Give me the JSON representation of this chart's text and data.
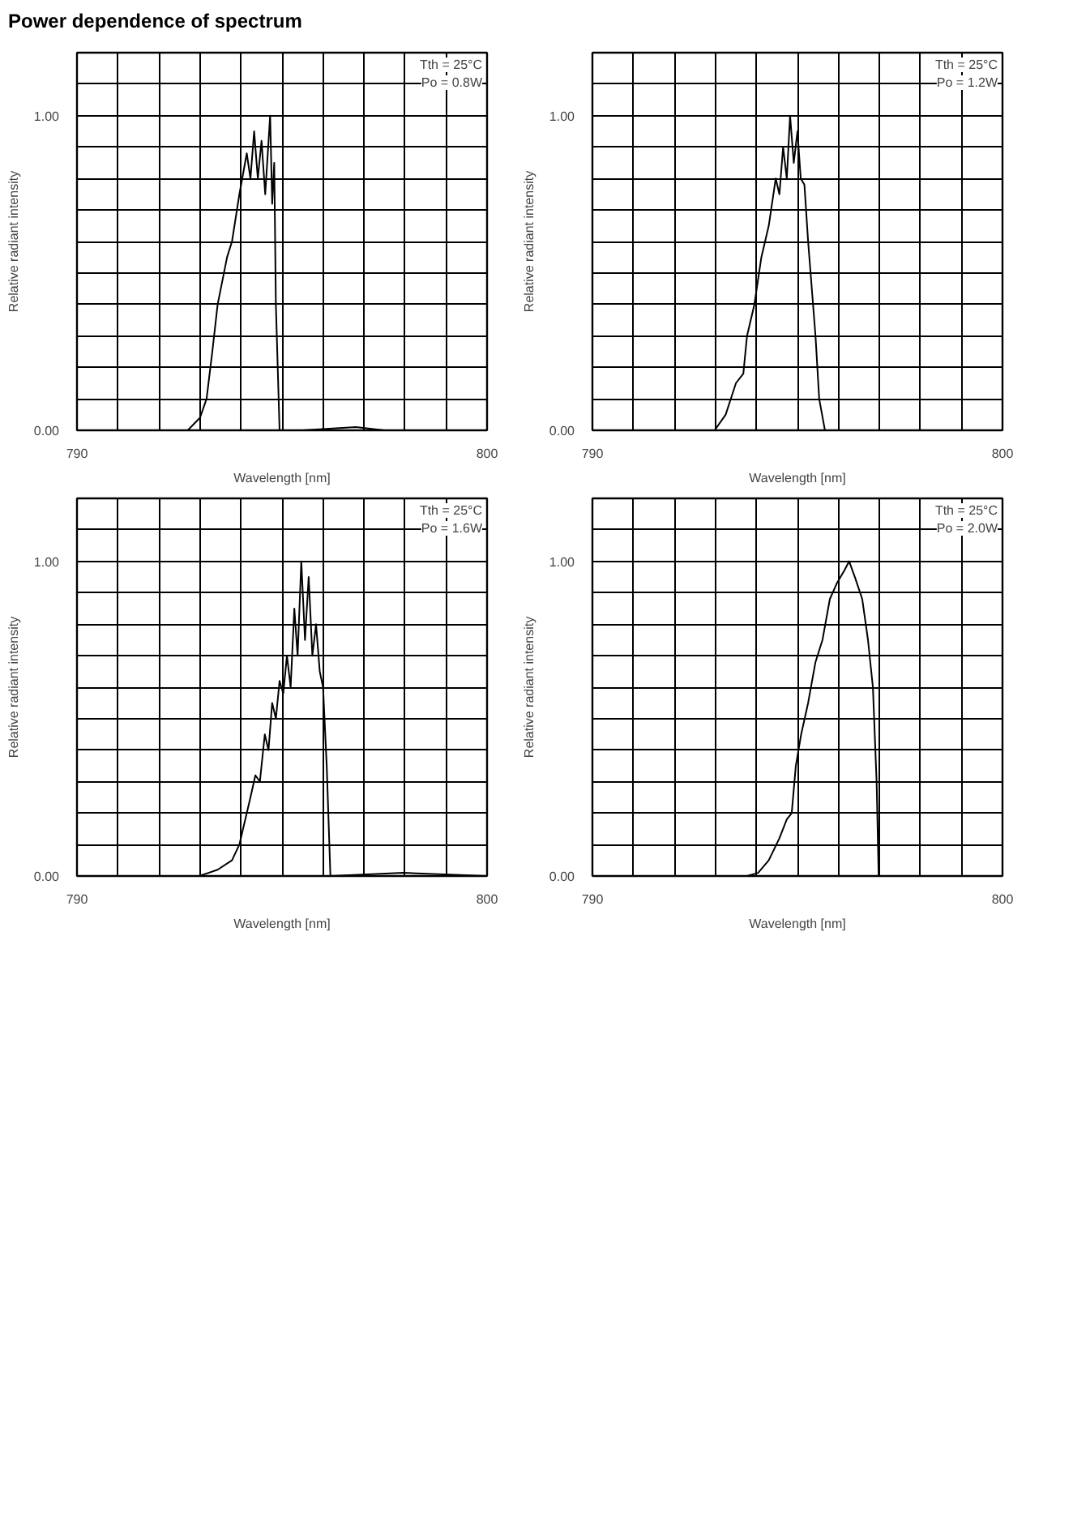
{
  "chart_data": [
    {
      "type": "line",
      "title": "Power dependence of spectrum",
      "xlabel": "Wavelength [nm]",
      "ylabel": "Relative radiant intensity",
      "annotations": [
        "Tth = 25°C",
        "Po = 0.8W"
      ],
      "grid": true,
      "color": "#000000",
      "xlim": [
        790,
        800
      ],
      "ylim": [
        0,
        1.2
      ],
      "xticks": [
        790,
        {
          "value": 791,
          "label": null
        },
        {
          "value": 792,
          "label": null
        },
        {
          "value": 793,
          "label": null
        },
        {
          "value": 794,
          "label": null
        },
        {
          "value": 795,
          "label": null
        },
        {
          "value": 796,
          "label": null
        },
        {
          "value": 797,
          "label": null
        },
        {
          "value": 798,
          "label": null
        },
        {
          "value": 799,
          "label": null
        },
        800
      ],
      "yticks": [
        {
          "value": 0,
          "label": "0.00"
        },
        {
          "value": 0.1,
          "label": null
        },
        {
          "value": 0.2,
          "label": null
        },
        {
          "value": 0.3,
          "label": null
        },
        {
          "value": 0.4,
          "label": null
        },
        {
          "value": 0.5,
          "label": null
        },
        {
          "value": 0.6,
          "label": null
        },
        {
          "value": 0.7,
          "label": null
        },
        {
          "value": 0.8,
          "label": null
        },
        {
          "value": 0.9,
          "label": null
        },
        {
          "value": 1.0,
          "label": "1.00"
        },
        {
          "value": 1.1,
          "label": null
        }
      ],
      "x": [
        790.0,
        791.5,
        792.7,
        793.0,
        793.16,
        793.3,
        793.43,
        793.66,
        793.78,
        793.96,
        794.14,
        794.23,
        794.32,
        794.41,
        794.5,
        794.59,
        794.71,
        794.76,
        794.81,
        794.85,
        794.94,
        795.5,
        796.8,
        797.5,
        800.0
      ],
      "values": [
        0.0,
        0.0,
        0.0,
        0.04,
        0.1,
        0.25,
        0.4,
        0.55,
        0.6,
        0.75,
        0.88,
        0.8,
        0.95,
        0.8,
        0.92,
        0.75,
        1.0,
        0.72,
        0.85,
        0.4,
        0.0,
        0.0,
        0.01,
        0.0,
        0.0
      ]
    },
    {
      "type": "line",
      "xlabel": "Wavelength [nm]",
      "ylabel": "Relative radiant intensity",
      "annotations": [
        "Tth = 25°C",
        "Po = 1.2W"
      ],
      "grid": true,
      "color": "#000000",
      "xlim": [
        790,
        800
      ],
      "ylim": [
        0,
        1.2
      ],
      "xticks": [
        790,
        {
          "value": 791,
          "label": null
        },
        {
          "value": 792,
          "label": null
        },
        {
          "value": 793,
          "label": null
        },
        {
          "value": 794,
          "label": null
        },
        {
          "value": 795,
          "label": null
        },
        {
          "value": 796,
          "label": null
        },
        {
          "value": 797,
          "label": null
        },
        {
          "value": 798,
          "label": null
        },
        {
          "value": 799,
          "label": null
        },
        800
      ],
      "yticks": [
        {
          "value": 0,
          "label": "0.00"
        },
        {
          "value": 0.1,
          "label": null
        },
        {
          "value": 0.2,
          "label": null
        },
        {
          "value": 0.3,
          "label": null
        },
        {
          "value": 0.4,
          "label": null
        },
        {
          "value": 0.5,
          "label": null
        },
        {
          "value": 0.6,
          "label": null
        },
        {
          "value": 0.7,
          "label": null
        },
        {
          "value": 0.8,
          "label": null
        },
        {
          "value": 0.9,
          "label": null
        },
        {
          "value": 1.0,
          "label": "1.00"
        },
        {
          "value": 1.1,
          "label": null
        }
      ],
      "x": [
        790.0,
        792.8,
        792.98,
        793.25,
        793.5,
        793.68,
        793.77,
        793.95,
        794.12,
        794.3,
        794.47,
        794.56,
        794.65,
        794.74,
        794.82,
        794.91,
        795.0,
        795.08,
        795.17,
        795.26,
        795.44,
        795.53,
        795.67,
        797.5,
        800.0
      ],
      "values": [
        0.0,
        0.0,
        0.0,
        0.05,
        0.15,
        0.18,
        0.3,
        0.4,
        0.55,
        0.65,
        0.8,
        0.75,
        0.9,
        0.8,
        1.0,
        0.85,
        0.95,
        0.8,
        0.78,
        0.6,
        0.3,
        0.1,
        0.0,
        0.0,
        0.0
      ]
    },
    {
      "type": "line",
      "xlabel": "Wavelength [nm]",
      "ylabel": "Relative radiant intensity",
      "annotations": [
        "Tth = 25°C",
        "Po = 1.6W"
      ],
      "grid": true,
      "color": "#000000",
      "xlim": [
        790,
        800
      ],
      "ylim": [
        0,
        1.2
      ],
      "xticks": [
        790,
        {
          "value": 791,
          "label": null
        },
        {
          "value": 792,
          "label": null
        },
        {
          "value": 793,
          "label": null
        },
        {
          "value": 794,
          "label": null
        },
        {
          "value": 795,
          "label": null
        },
        {
          "value": 796,
          "label": null
        },
        {
          "value": 797,
          "label": null
        },
        {
          "value": 798,
          "label": null
        },
        {
          "value": 799,
          "label": null
        },
        800
      ],
      "yticks": [
        {
          "value": 0,
          "label": "0.00"
        },
        {
          "value": 0.1,
          "label": null
        },
        {
          "value": 0.2,
          "label": null
        },
        {
          "value": 0.3,
          "label": null
        },
        {
          "value": 0.4,
          "label": null
        },
        {
          "value": 0.5,
          "label": null
        },
        {
          "value": 0.6,
          "label": null
        },
        {
          "value": 0.7,
          "label": null
        },
        {
          "value": 0.8,
          "label": null
        },
        {
          "value": 0.9,
          "label": null
        },
        {
          "value": 1.0,
          "label": "1.00"
        },
        {
          "value": 1.1,
          "label": null
        }
      ],
      "x": [
        790.0,
        792.98,
        793.43,
        793.78,
        793.96,
        794.23,
        794.35,
        794.46,
        794.58,
        794.67,
        794.76,
        794.85,
        794.94,
        795.03,
        795.12,
        795.21,
        795.3,
        795.38,
        795.47,
        795.56,
        795.65,
        795.74,
        795.83,
        795.92,
        796.0,
        796.09,
        796.18,
        797.96,
        800.0
      ],
      "values": [
        0.0,
        0.0,
        0.02,
        0.05,
        0.1,
        0.25,
        0.32,
        0.3,
        0.45,
        0.4,
        0.55,
        0.5,
        0.62,
        0.58,
        0.7,
        0.6,
        0.85,
        0.7,
        1.0,
        0.75,
        0.95,
        0.7,
        0.8,
        0.65,
        0.6,
        0.35,
        0.0,
        0.01,
        0.0
      ]
    },
    {
      "type": "line",
      "xlabel": "Wavelength [nm]",
      "ylabel": "Relative radiant intensity",
      "annotations": [
        "Tth = 25°C",
        "Po = 2.0W"
      ],
      "grid": true,
      "color": "#000000",
      "xlim": [
        790,
        800
      ],
      "ylim": [
        0,
        1.2
      ],
      "xticks": [
        790,
        {
          "value": 791,
          "label": null
        },
        {
          "value": 792,
          "label": null
        },
        {
          "value": 793,
          "label": null
        },
        {
          "value": 794,
          "label": null
        },
        {
          "value": 795,
          "label": null
        },
        {
          "value": 796,
          "label": null
        },
        {
          "value": 797,
          "label": null
        },
        {
          "value": 798,
          "label": null
        },
        {
          "value": 799,
          "label": null
        },
        800
      ],
      "yticks": [
        {
          "value": 0,
          "label": "0.00"
        },
        {
          "value": 0.1,
          "label": null
        },
        {
          "value": 0.2,
          "label": null
        },
        {
          "value": 0.3,
          "label": null
        },
        {
          "value": 0.4,
          "label": null
        },
        {
          "value": 0.5,
          "label": null
        },
        {
          "value": 0.6,
          "label": null
        },
        {
          "value": 0.7,
          "label": null
        },
        {
          "value": 0.8,
          "label": null
        },
        {
          "value": 0.9,
          "label": null
        },
        {
          "value": 1.0,
          "label": "1.00"
        },
        {
          "value": 1.1,
          "label": null
        }
      ],
      "x": [
        790.0,
        791.6,
        793.77,
        794.04,
        794.3,
        794.56,
        794.74,
        794.86,
        794.96,
        795.09,
        795.26,
        795.44,
        795.61,
        795.79,
        795.96,
        796.14,
        796.26,
        796.4,
        796.58,
        796.72,
        796.84,
        796.93,
        796.98,
        800.0
      ],
      "values": [
        0.0,
        0.0,
        0.0,
        0.01,
        0.05,
        0.12,
        0.18,
        0.2,
        0.35,
        0.45,
        0.55,
        0.68,
        0.75,
        0.88,
        0.93,
        0.97,
        1.0,
        0.95,
        0.88,
        0.75,
        0.6,
        0.3,
        0.0,
        0.0
      ]
    }
  ]
}
